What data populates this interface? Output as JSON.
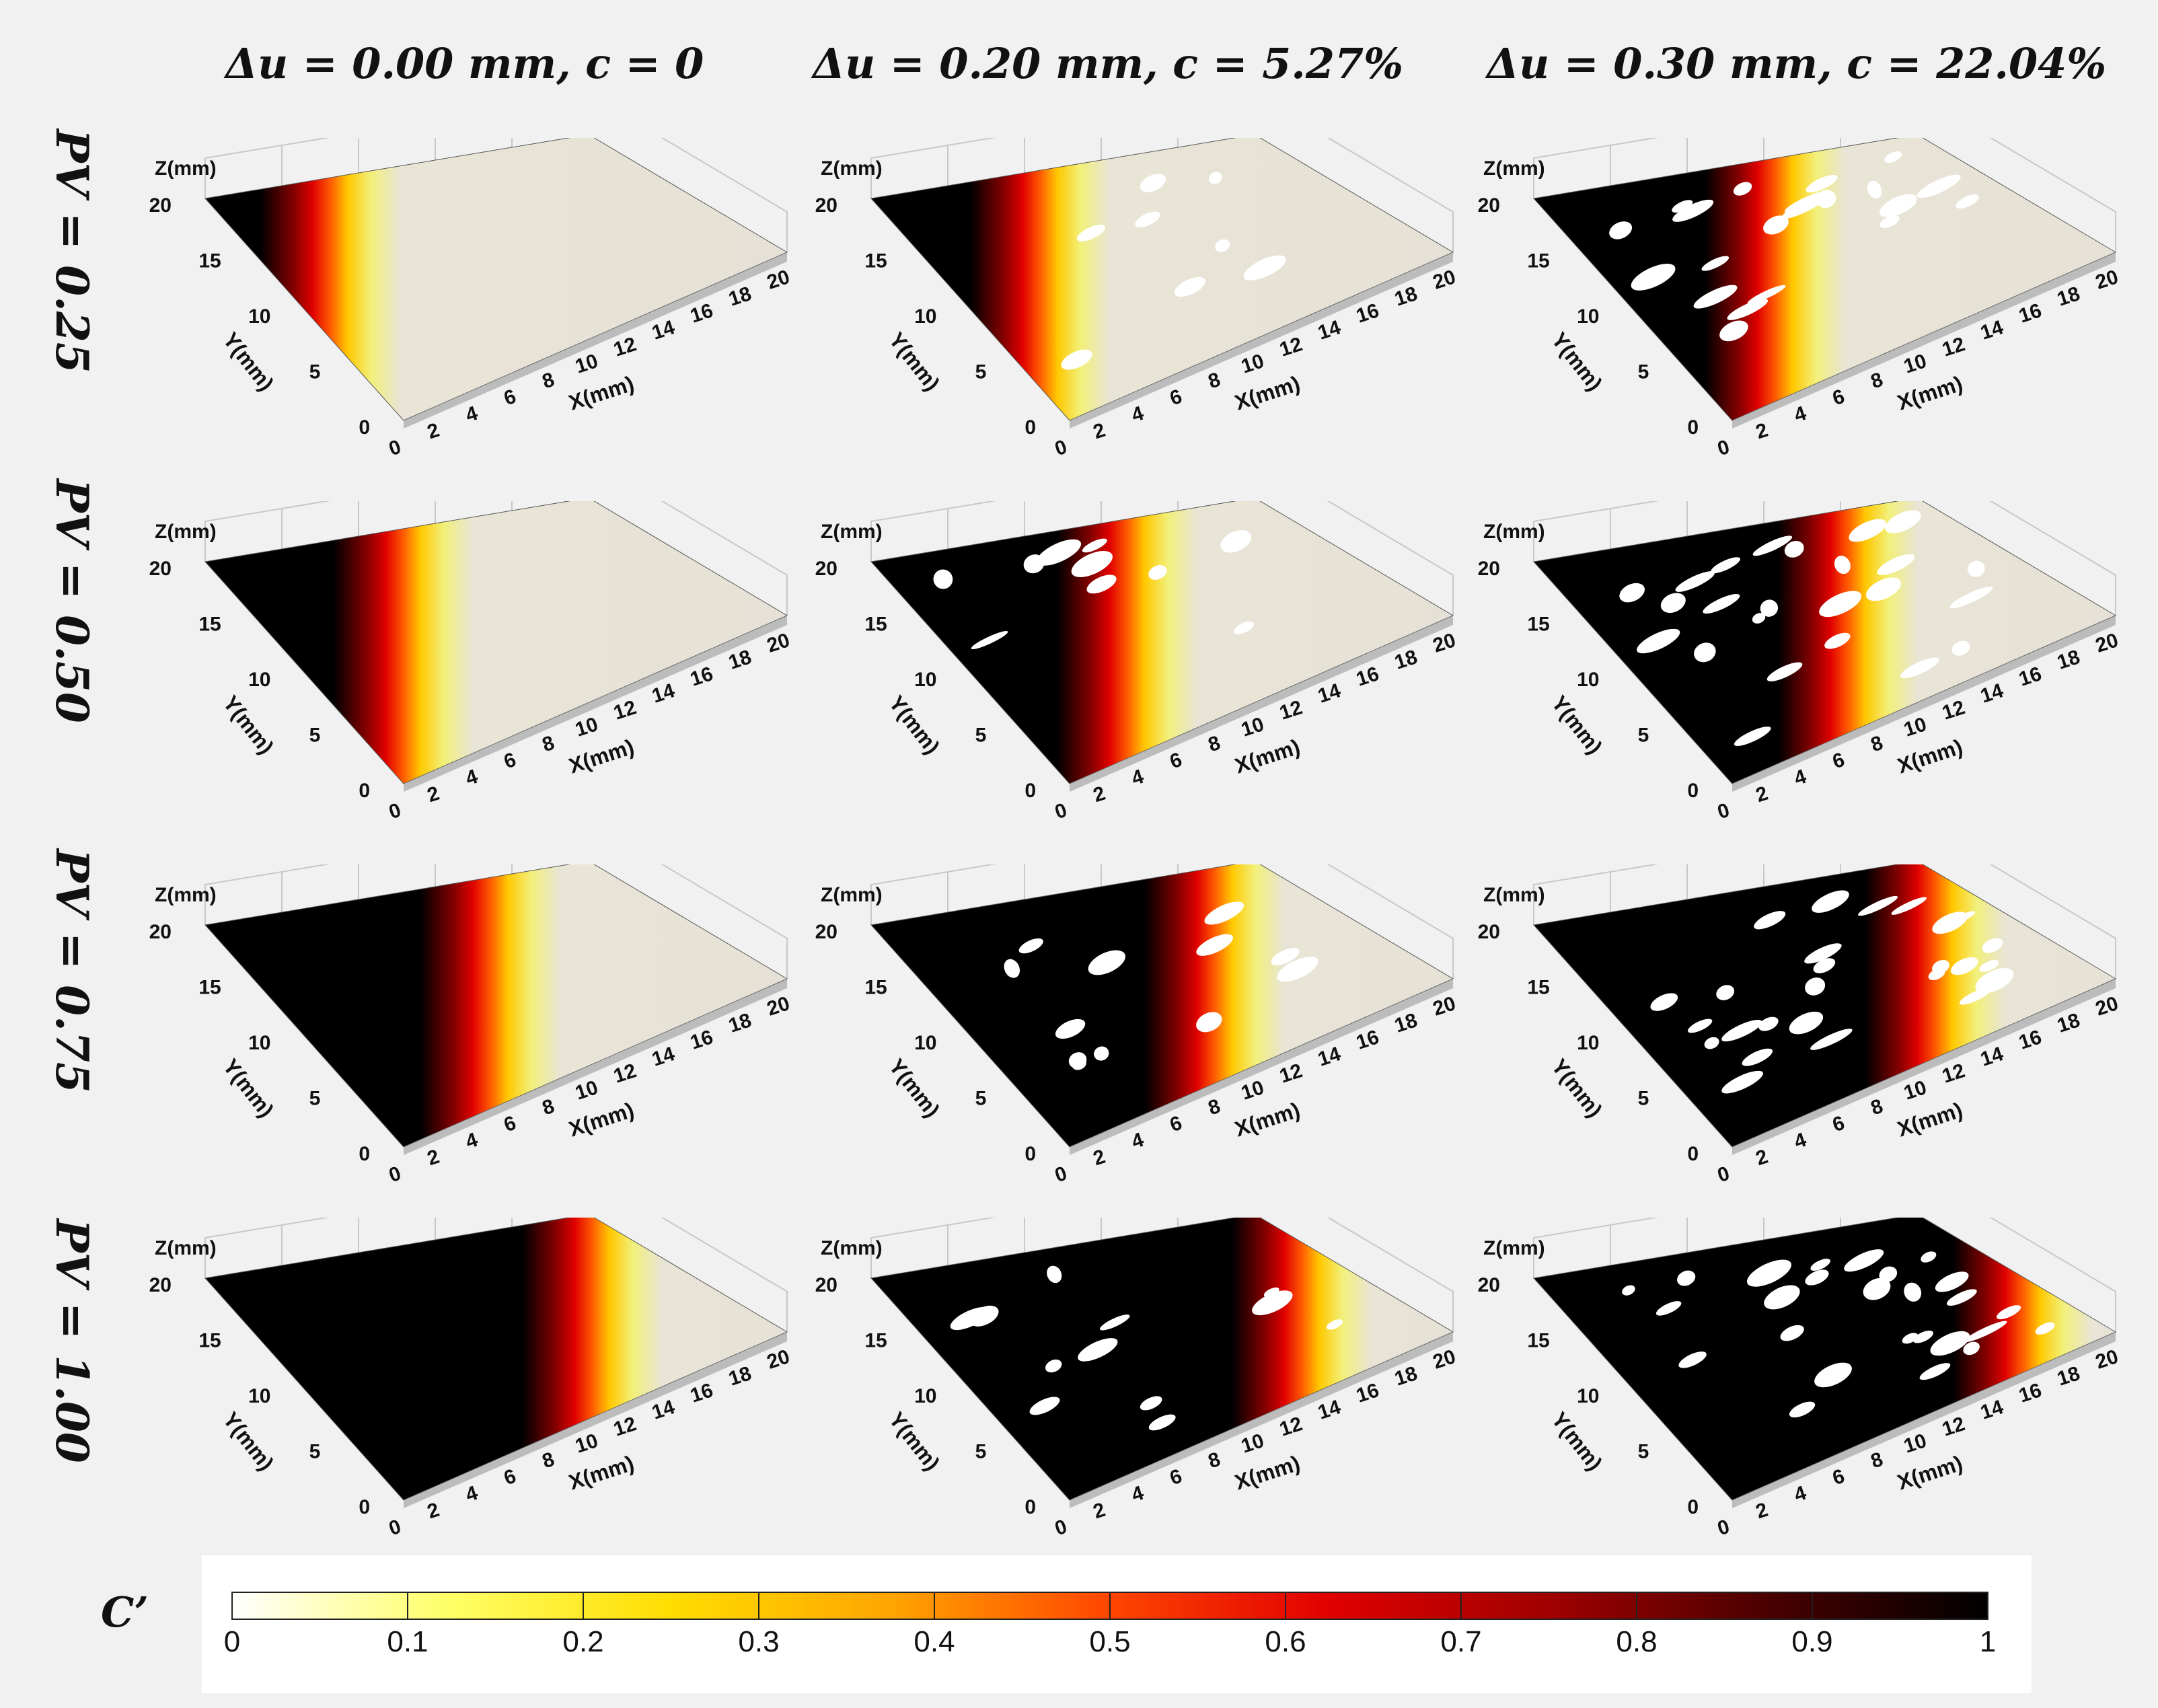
{
  "columns": [
    {
      "header": "Δu = 0.00 mm, c = 0"
    },
    {
      "header": "Δu = 0.20 mm, c = 5.27%"
    },
    {
      "header": "Δu = 0.30 mm, c = 22.04%"
    }
  ],
  "rows": [
    {
      "label": "PV = 0.25"
    },
    {
      "label": "PV = 0.50"
    },
    {
      "label": "PV = 0.75"
    },
    {
      "label": "PV = 1.00"
    }
  ],
  "axes": {
    "z_label": "Z(mm)",
    "y_label": "Y(mm)",
    "x_label": "X(mm)",
    "y_ticks": [
      "0",
      "5",
      "10",
      "15",
      "20"
    ],
    "x_ticks": [
      "0",
      "2",
      "4",
      "6",
      "8",
      "10",
      "12",
      "14",
      "16",
      "18",
      "20"
    ]
  },
  "colorbar": {
    "label": "C’",
    "ticks": [
      "0",
      "0.1",
      "0.2",
      "0.3",
      "0.4",
      "0.5",
      "0.6",
      "0.7",
      "0.8",
      "0.9",
      "1"
    ],
    "colors": [
      "#ffffff",
      "#ffff66",
      "#ffdd00",
      "#ffa500",
      "#ff4500",
      "#e00000",
      "#a00000",
      "#4a0000",
      "#000000"
    ]
  },
  "chart_data": {
    "type": "heatmap",
    "description_grid": "3D surface fracture maps, 4 rows (PV) × 3 columns (shear displacement Δu, contact ratio c)",
    "value_name": "C’",
    "value_range": [
      0,
      1
    ],
    "x_range_mm": [
      0,
      20
    ],
    "y_range_mm": [
      0,
      20
    ],
    "panels": [
      {
        "row": "PV = 0.25",
        "col": "Δu = 0.00 mm, c = 0",
        "front_x_mm": 3.5,
        "holes": 0
      },
      {
        "row": "PV = 0.25",
        "col": "Δu = 0.20 mm, c = 5.27%",
        "front_x_mm": 5.0,
        "holes": 8
      },
      {
        "row": "PV = 0.25",
        "col": "Δu = 0.30 mm, c = 22.04%",
        "front_x_mm": 7.5,
        "holes": 22
      },
      {
        "row": "PV = 0.50",
        "col": "Δu = 0.00 mm, c = 0",
        "front_x_mm": 6.0,
        "holes": 0
      },
      {
        "row": "PV = 0.50",
        "col": "Δu = 0.20 mm, c = 5.27%",
        "front_x_mm": 8.0,
        "holes": 10
      },
      {
        "row": "PV = 0.50",
        "col": "Δu = 0.30 mm, c = 22.04%",
        "front_x_mm": 10.0,
        "holes": 24
      },
      {
        "row": "PV = 0.75",
        "col": "Δu = 0.00 mm, c = 0",
        "front_x_mm": 9.0,
        "holes": 0
      },
      {
        "row": "PV = 0.75",
        "col": "Δu = 0.20 mm, c = 5.27%",
        "front_x_mm": 11.0,
        "holes": 12
      },
      {
        "row": "PV = 0.75",
        "col": "Δu = 0.30 mm, c = 22.04%",
        "front_x_mm": 13.0,
        "holes": 26
      },
      {
        "row": "PV = 1.00",
        "col": "Δu = 0.00 mm, c = 0",
        "front_x_mm": 12.5,
        "holes": 0
      },
      {
        "row": "PV = 1.00",
        "col": "Δu = 0.20 mm, c = 5.27%",
        "front_x_mm": 14.0,
        "holes": 12
      },
      {
        "row": "PV = 1.00",
        "col": "Δu = 0.30 mm, c = 22.04%",
        "front_x_mm": 16.0,
        "holes": 26
      }
    ]
  }
}
